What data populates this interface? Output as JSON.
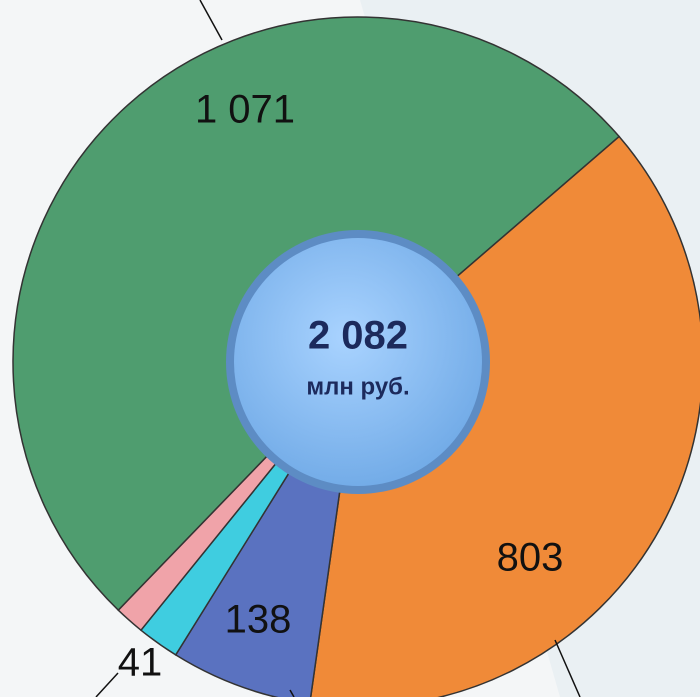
{
  "chart_data": {
    "type": "donut",
    "values": [
      1071,
      803,
      138,
      41,
      29
    ],
    "value_labels": [
      "1 071",
      "803",
      "138",
      "41",
      null
    ],
    "colors": [
      "#4f9d6f",
      "#f08a38",
      "#5a72c0",
      "#3fcde0",
      "#f0a3a9"
    ],
    "start_angle": 224,
    "center_value": "2 082",
    "center_unit": "млн руб."
  }
}
